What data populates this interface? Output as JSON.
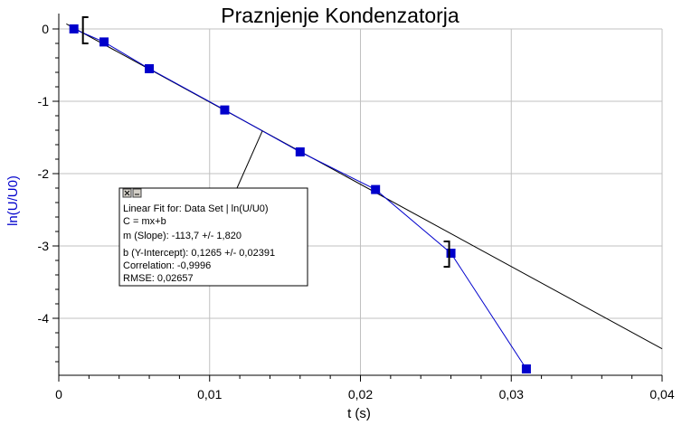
{
  "chart_data": {
    "type": "scatter",
    "title": "Praznjenje Kondenzatorja",
    "xlabel": "t (s)",
    "ylabel": "ln(U/U0)",
    "xlim": [
      0,
      0.04
    ],
    "ylim": [
      -4.8,
      0.1
    ],
    "x_ticks": [
      0,
      0.01,
      0.02,
      0.03,
      0.04
    ],
    "x_tick_labels": [
      "0",
      "0,01",
      "0,02",
      "0,03",
      "0,04"
    ],
    "y_ticks": [
      0,
      -1,
      -2,
      -3,
      -4
    ],
    "y_tick_labels": [
      "0",
      "-1",
      "-2",
      "-3",
      "-4"
    ],
    "grid": true,
    "series": [
      {
        "x": [
          0.001,
          0.003,
          0.006,
          0.011,
          0.016,
          0.021,
          0.026,
          0.031
        ],
        "y": [
          0.0,
          -0.18,
          -0.55,
          -1.12,
          -1.7,
          -2.22,
          -3.1,
          -4.7
        ],
        "color": "#0000cc",
        "marker": "square"
      }
    ],
    "fit_line": {
      "slope": -113.7,
      "intercept": 0.1265,
      "color": "#000000"
    },
    "fit_range_brackets": [
      0.001,
      0.026
    ],
    "fit_box": {
      "title": "Linear Fit for: Data Set | ln(U/U0)",
      "lines": [
        "C = mx+b",
        "m (Slope): -113,7 +/- 1,820",
        "b (Y-Intercept): 0,1265 +/- 0,02391",
        "Correlation: -0,9996",
        "RMSE: 0,02657"
      ],
      "close_icon": "close-icon",
      "minimize_icon": "minimize-icon"
    },
    "colors": {
      "grid": "#c0c0c0",
      "ylabel": "#0000cc",
      "data": "#0000cc"
    }
  }
}
